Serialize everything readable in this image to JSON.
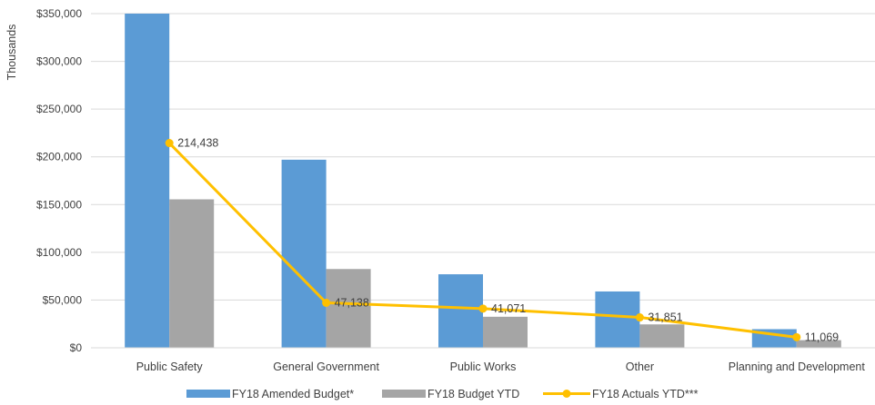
{
  "chart_data": {
    "type": "bar",
    "title": "",
    "xlabel": "",
    "ylabel": "Thousands",
    "categories": [
      "Public Safety",
      "General Government",
      "Public Works",
      "Other",
      "Planning and Development"
    ],
    "series": [
      {
        "name": "FY18 Amended Budget*",
        "kind": "bar",
        "color": "#5b9bd5",
        "values": [
          350000,
          197000,
          77000,
          59000,
          19500
        ]
      },
      {
        "name": "FY18 Budget YTD",
        "kind": "bar",
        "color": "#a5a5a5",
        "values": [
          155500,
          82500,
          32500,
          24500,
          8000
        ]
      },
      {
        "name": "FY18 Actuals YTD***",
        "kind": "line",
        "color": "#ffc000",
        "values": [
          214438,
          47138,
          41071,
          31851,
          11069
        ]
      }
    ],
    "data_labels": [
      "214,438",
      "47,138",
      "41,071",
      "31,851",
      "11,069"
    ],
    "yticks": [
      0,
      50000,
      100000,
      150000,
      200000,
      250000,
      300000,
      350000
    ],
    "ytick_labels": [
      "$0",
      "$50,000",
      "$100,000",
      "$150,000",
      "$200,000",
      "$250,000",
      "$300,000",
      "$350,000"
    ],
    "ylim": [
      0,
      350000
    ],
    "grid": true,
    "legend_position": "bottom"
  }
}
